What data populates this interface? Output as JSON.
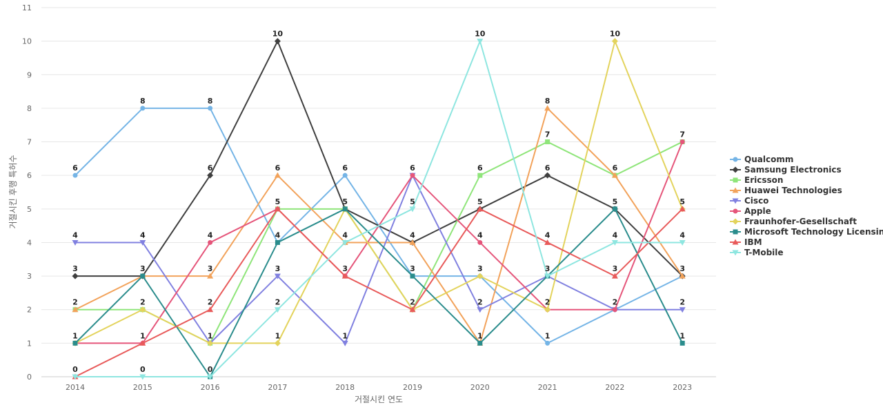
{
  "chart_data": {
    "type": "line",
    "xlabel": "거절시킨 연도",
    "ylabel": "거절시킨 후행 특허수",
    "x": [
      2014,
      2015,
      2016,
      2017,
      2018,
      2019,
      2020,
      2021,
      2022,
      2023
    ],
    "ylim": [
      0,
      11
    ],
    "yticks": [
      0,
      1,
      2,
      3,
      4,
      5,
      6,
      7,
      8,
      9,
      10,
      11
    ],
    "grid": true,
    "legend_position": "right",
    "series": [
      {
        "name": "Qualcomm",
        "color": "#74b4e6",
        "marker": "circle",
        "values": [
          6,
          8,
          8,
          4,
          6,
          3,
          3,
          1,
          2,
          3
        ]
      },
      {
        "name": "Samsung Electronics",
        "color": "#3f3f3f",
        "marker": "diamond",
        "values": [
          3,
          3,
          6,
          10,
          5,
          4,
          5,
          6,
          5,
          3
        ]
      },
      {
        "name": "Ericsson",
        "color": "#8fe57a",
        "marker": "square",
        "values": [
          2,
          2,
          1,
          5,
          5,
          2,
          6,
          7,
          6,
          7
        ]
      },
      {
        "name": "Huawei Technologies",
        "color": "#f2a25a",
        "marker": "triangle",
        "values": [
          2,
          3,
          3,
          6,
          4,
          4,
          1,
          8,
          6,
          3
        ]
      },
      {
        "name": "Cisco",
        "color": "#8080e0",
        "marker": "triangle-down",
        "values": [
          4,
          4,
          1,
          3,
          1,
          6,
          2,
          3,
          2,
          2
        ]
      },
      {
        "name": "Apple",
        "color": "#e5557a",
        "marker": "circle",
        "values": [
          1,
          1,
          4,
          5,
          3,
          6,
          4,
          2,
          2,
          7
        ]
      },
      {
        "name": "Fraunhofer-Gesellschaft",
        "color": "#e3d35c",
        "marker": "diamond",
        "values": [
          1,
          2,
          1,
          1,
          5,
          2,
          3,
          2,
          10,
          5
        ]
      },
      {
        "name": "Microsoft Technology Licensing",
        "color": "#2a8c8c",
        "marker": "square",
        "values": [
          1,
          3,
          0,
          4,
          5,
          3,
          1,
          3,
          5,
          1
        ]
      },
      {
        "name": "IBM",
        "color": "#e85a5a",
        "marker": "triangle",
        "values": [
          0,
          1,
          2,
          5,
          3,
          2,
          5,
          4,
          3,
          5
        ]
      },
      {
        "name": "T-Mobile",
        "color": "#8ee6e0",
        "marker": "triangle-down",
        "values": [
          0,
          0,
          0,
          2,
          4,
          5,
          10,
          3,
          4,
          4
        ]
      }
    ]
  }
}
